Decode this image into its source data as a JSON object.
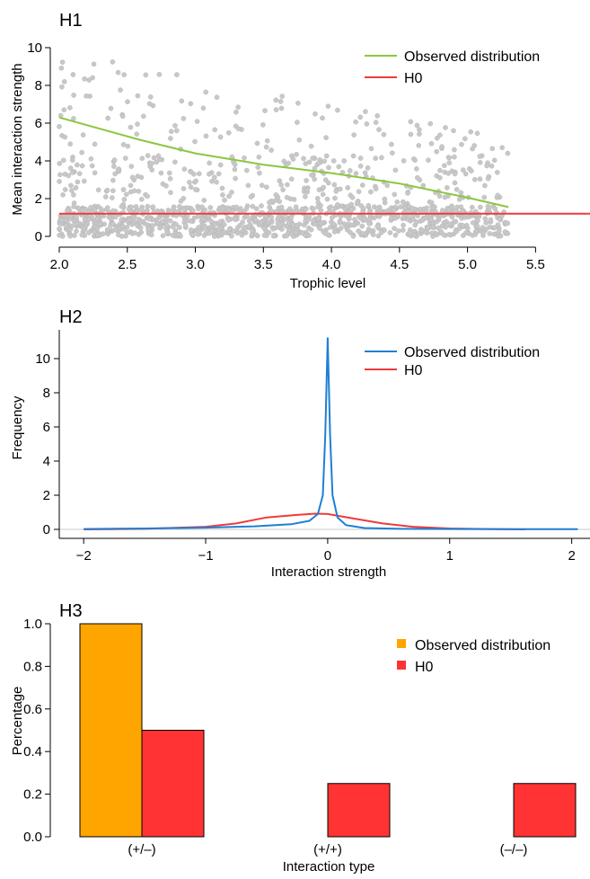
{
  "chart_data": [
    {
      "panel": "H1",
      "type": "scatter",
      "xlabel": "Trophic level",
      "ylabel": "Mean interaction strength",
      "xlim": [
        2.0,
        5.9
      ],
      "ylim": [
        0,
        10
      ],
      "xticks": [
        "2.0",
        "2.5",
        "3.0",
        "3.5",
        "4.0",
        "4.5",
        "5.0",
        "5.5"
      ],
      "yticks": [
        "0",
        "2",
        "4",
        "6",
        "8",
        "10"
      ],
      "point_color": "#c8c8c8",
      "point_count": 1400,
      "series": [
        {
          "name": "Observed distribution",
          "color": "#8cc63f",
          "x": [
            2.0,
            2.3,
            2.6,
            3.0,
            3.5,
            4.0,
            4.5,
            5.0,
            5.3
          ],
          "y": [
            6.3,
            5.7,
            5.1,
            4.4,
            3.8,
            3.35,
            2.8,
            2.05,
            1.55
          ]
        },
        {
          "name": "H0",
          "color": "#ee3b3b",
          "x": [
            2.0,
            5.9
          ],
          "y": [
            1.2,
            1.2
          ]
        }
      ],
      "legend": "top-right"
    },
    {
      "panel": "H2",
      "type": "line",
      "xlabel": "Interaction strength",
      "ylabel": "Frequency",
      "xlim": [
        -2.2,
        2.15
      ],
      "ylim": [
        0,
        11.5
      ],
      "xticks": [
        "−2",
        "−1",
        "0",
        "1",
        "2"
      ],
      "yticks": [
        "0",
        "2",
        "4",
        "6",
        "8",
        "10"
      ],
      "series": [
        {
          "name": "Observed distribution",
          "color": "#1f7fd6",
          "x": [
            -2.0,
            -1.5,
            -1.0,
            -0.6,
            -0.3,
            -0.15,
            -0.08,
            -0.04,
            -0.02,
            0.0,
            0.02,
            0.04,
            0.08,
            0.15,
            0.3,
            0.6,
            1.0,
            1.5,
            2.05
          ],
          "y": [
            0.02,
            0.05,
            0.1,
            0.18,
            0.3,
            0.5,
            0.9,
            2.0,
            5.5,
            11.2,
            5.5,
            2.0,
            0.7,
            0.25,
            0.08,
            0.03,
            0.02,
            0.01,
            0.01
          ]
        },
        {
          "name": "H0",
          "color": "#ee3b3b",
          "x": [
            -2.0,
            -1.5,
            -1.0,
            -0.75,
            -0.5,
            -0.25,
            -0.1,
            0.0,
            0.2,
            0.45,
            0.7,
            1.0,
            1.3,
            1.62
          ],
          "y": [
            0.0,
            0.03,
            0.15,
            0.35,
            0.7,
            0.85,
            0.92,
            0.9,
            0.65,
            0.35,
            0.15,
            0.05,
            0.02,
            0.0
          ]
        }
      ],
      "legend": "top-right"
    },
    {
      "panel": "H3",
      "type": "bar",
      "xlabel": "Interaction type",
      "ylabel": "Percentage",
      "ylim": [
        0,
        1.0
      ],
      "yticks": [
        "0.0",
        "0.2",
        "0.4",
        "0.6",
        "0.8",
        "1.0"
      ],
      "categories": [
        "(+/–)",
        "(+/+)",
        "(–/–)"
      ],
      "series": [
        {
          "name": "Observed distribution",
          "color": "#ffa500",
          "values": [
            1.0,
            0.0,
            0.0
          ]
        },
        {
          "name": "H0",
          "color": "#ff3333",
          "values": [
            0.5,
            0.25,
            0.25
          ]
        }
      ],
      "legend": "top-right"
    }
  ]
}
